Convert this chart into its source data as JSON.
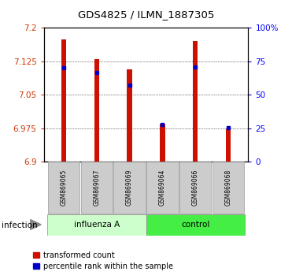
{
  "title": "GDS4825 / ILMN_1887305",
  "samples": [
    "GSM869065",
    "GSM869067",
    "GSM869069",
    "GSM869064",
    "GSM869066",
    "GSM869068"
  ],
  "red_values": [
    7.175,
    7.13,
    7.107,
    6.985,
    7.17,
    6.975
  ],
  "blue_values": [
    7.11,
    7.1,
    7.072,
    6.984,
    7.112,
    6.977
  ],
  "ylim_left": [
    6.9,
    7.2
  ],
  "ylim_right": [
    0,
    100
  ],
  "yticks_left": [
    6.9,
    6.975,
    7.05,
    7.125,
    7.2
  ],
  "yticks_right": [
    0,
    25,
    50,
    75,
    100
  ],
  "ytick_labels_left": [
    "6.9",
    "6.975",
    "7.05",
    "7.125",
    "7.2"
  ],
  "ytick_labels_right": [
    "0",
    "25",
    "50",
    "75",
    "100%"
  ],
  "bar_color": "#cc1100",
  "marker_color": "#0000cc",
  "base_value": 6.9,
  "bar_width": 0.15,
  "group1_label": "influenza A",
  "group2_label": "control",
  "group1_color": "#ccffcc",
  "group2_color": "#44ee44",
  "infection_label": "infection",
  "legend_red": "transformed count",
  "legend_blue": "percentile rank within the sample"
}
